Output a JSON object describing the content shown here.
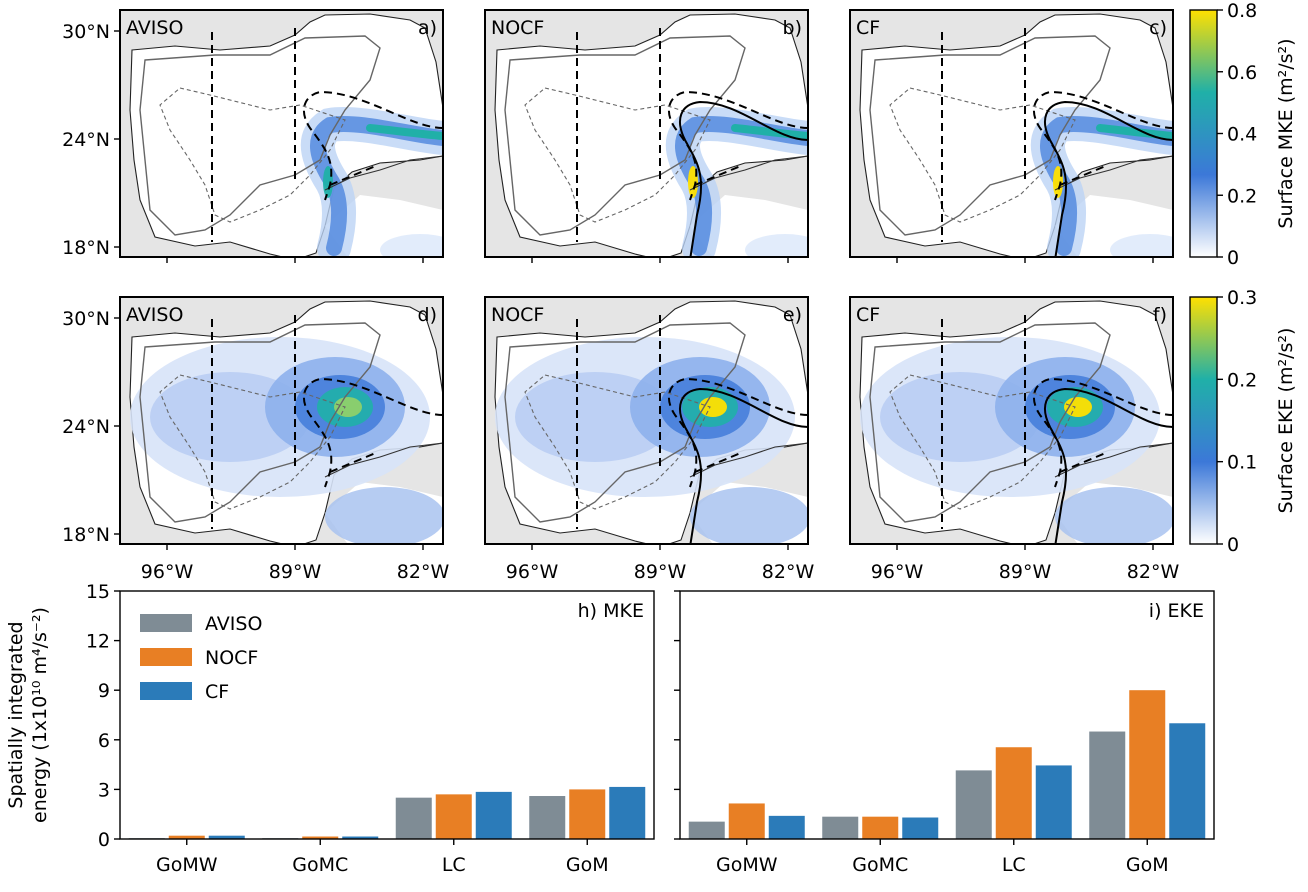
{
  "maps": {
    "rows": [
      {
        "colorbar": {
          "label_main": "Surface MKE",
          "label_unit": "(m²/s²)",
          "ticks": [
            "0",
            "0.2",
            "0.4",
            "0.6",
            "0.8"
          ],
          "vmin": 0,
          "vmax": 0.8
        },
        "panels": [
          {
            "source": "AVISO",
            "letter": "a)"
          },
          {
            "source": "NOCF",
            "letter": "b)"
          },
          {
            "source": "CF",
            "letter": "c)"
          }
        ]
      },
      {
        "colorbar": {
          "label_main": "Surface EKE",
          "label_unit": "(m²/s²)",
          "ticks": [
            "0",
            "0.1",
            "0.2",
            "0.3"
          ],
          "vmin": 0,
          "vmax": 0.3
        },
        "panels": [
          {
            "source": "AVISO",
            "letter": "d)"
          },
          {
            "source": "NOCF",
            "letter": "e)"
          },
          {
            "source": "CF",
            "letter": "f)"
          }
        ]
      }
    ],
    "lat_ticks": [
      "30°N",
      "24°N",
      "18°N"
    ],
    "lon_ticks": [
      "96°W",
      "89°W",
      "82°W"
    ],
    "land_color": "#e5e5e5",
    "colormap": [
      "#ffffff",
      "#3c78d8",
      "#20b0a8",
      "#ffe000"
    ]
  },
  "chart_data": {
    "type": "bar",
    "ylabel_line1": "Spatially integrated",
    "ylabel_line2": "energy (1x10¹⁰ m⁴/s⁻²)",
    "ylim": [
      0,
      15
    ],
    "yticks": [
      "0",
      "3",
      "6",
      "9",
      "12",
      "15"
    ],
    "categories": [
      "GoMW",
      "GoMC",
      "LC",
      "GoM"
    ],
    "legend_placement": "top-left",
    "series_colors": [
      "#7f8c95",
      "#e87f24",
      "#2b7bb9"
    ],
    "panels": [
      {
        "label": "h) MKE",
        "series": [
          {
            "name": "AVISO",
            "values": [
              0.05,
              0.05,
              2.5,
              2.6
            ]
          },
          {
            "name": "NOCF",
            "values": [
              0.2,
              0.15,
              2.7,
              3.0
            ]
          },
          {
            "name": "CF",
            "values": [
              0.2,
              0.15,
              2.85,
              3.15
            ]
          }
        ]
      },
      {
        "label": "i) EKE",
        "series": [
          {
            "name": "AVISO",
            "values": [
              1.05,
              1.35,
              4.15,
              6.5
            ]
          },
          {
            "name": "NOCF",
            "values": [
              2.15,
              1.35,
              5.55,
              9.0
            ]
          },
          {
            "name": "CF",
            "values": [
              1.4,
              1.3,
              4.45,
              7.0
            ]
          }
        ]
      }
    ]
  }
}
